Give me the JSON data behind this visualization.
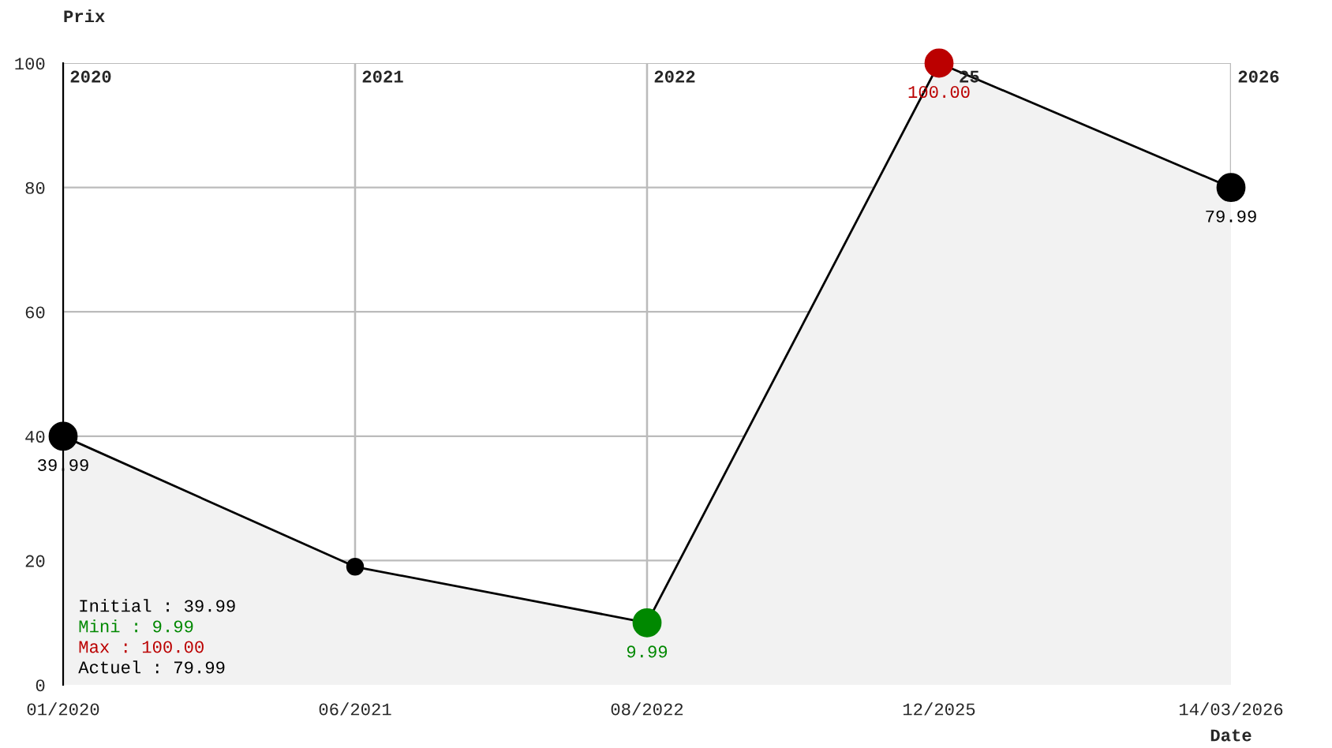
{
  "chart_data": {
    "type": "area",
    "ylabel": "Prix",
    "xlabel": "Date",
    "categories": [
      "01/2020",
      "06/2021",
      "08/2022",
      "12/2025",
      "14/03/2026"
    ],
    "series": [
      {
        "color": "#000000",
        "values": [
          39.99,
          19,
          9.99,
          100.0,
          79.99
        ],
        "colors": [
          "#000000",
          "#000000",
          "#008800",
          "#bb0000",
          "#000000"
        ],
        "value_labels": [
          "39.99",
          null,
          "9.99",
          "100.00",
          "79.99"
        ]
      }
    ],
    "ylim": [
      0,
      100
    ],
    "yticks": [
      0,
      20,
      40,
      60,
      80,
      100
    ],
    "grid": true,
    "marker": "circle",
    "annotations": [
      "2020",
      "2021",
      "2022",
      "25",
      "2026",
      "Initial : 39.99",
      "Mini : 9.99",
      "Max : 100.00",
      "Actuel : 79.99"
    ]
  }
}
